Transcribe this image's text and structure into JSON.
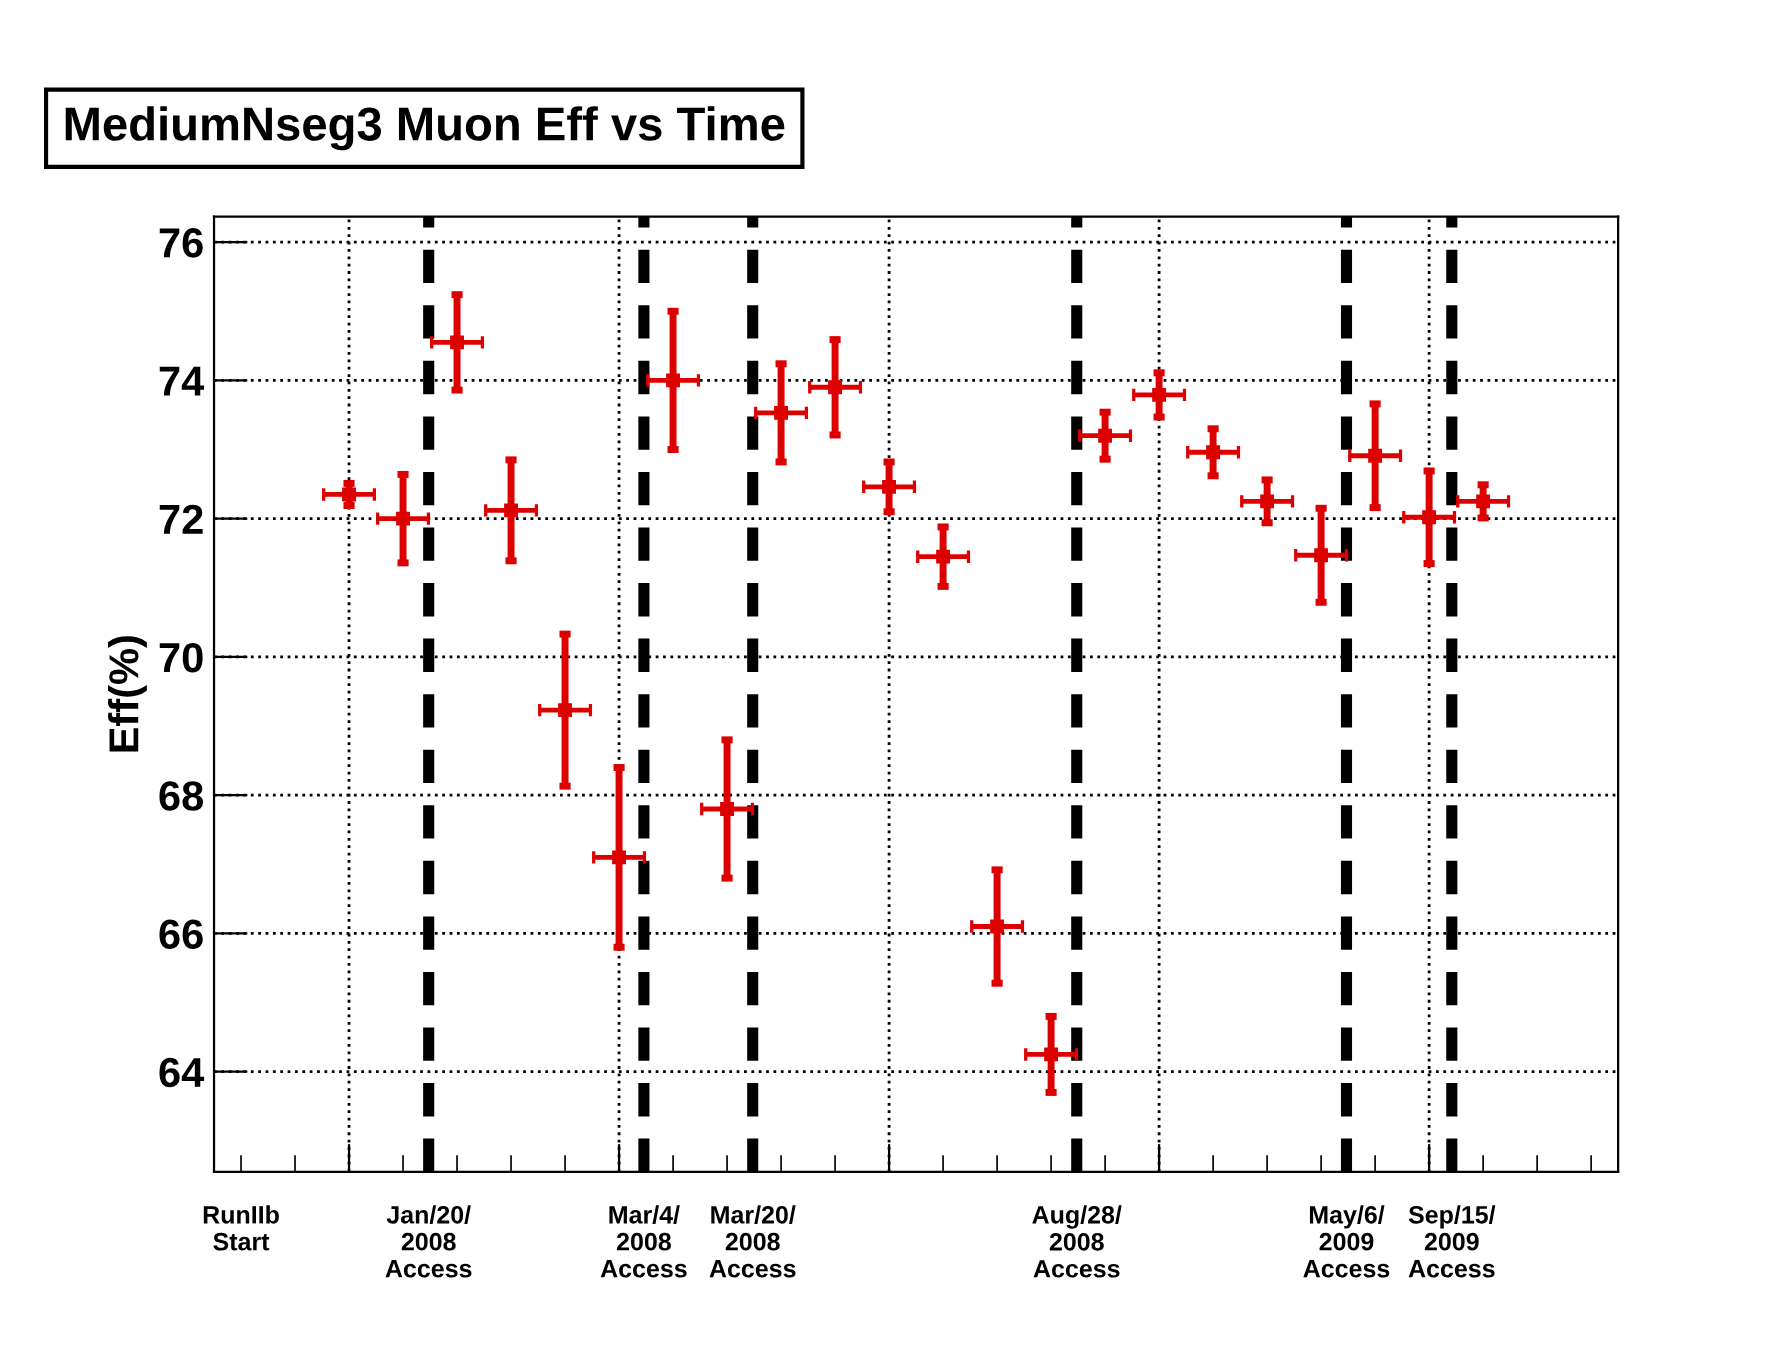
{
  "chart_data": {
    "type": "scatter",
    "title": "MediumNseg3 Muon Eff vs Time",
    "ylabel": "Eff(%)",
    "categories": [
      null,
      null,
      null,
      null,
      null,
      null,
      null,
      null,
      null,
      null,
      null,
      null,
      null,
      null,
      null,
      null,
      null,
      null,
      null,
      null,
      null,
      null,
      null,
      null,
      null,
      null
    ],
    "series": [
      {
        "color": "#dd0000",
        "values": [
          null,
          null,
          72.35,
          72.0,
          74.55,
          72.12,
          69.23,
          67.1,
          74.0,
          67.8,
          73.53,
          73.9,
          72.46,
          71.45,
          66.1,
          64.25,
          73.2,
          73.79,
          72.96,
          72.25,
          71.47,
          72.91,
          72.02,
          72.25,
          null,
          null
        ],
        "errors": [
          null,
          null,
          0.16,
          0.64,
          0.69,
          0.73,
          1.1,
          1.3,
          1.0,
          1.0,
          0.71,
          0.69,
          0.36,
          0.43,
          0.82,
          0.55,
          0.34,
          0.32,
          0.34,
          0.31,
          0.68,
          0.75,
          0.67,
          0.24,
          null,
          null
        ]
      }
    ],
    "ylim": [
      62.55,
      76.37
    ],
    "yticks": [
      64,
      66,
      68,
      70,
      72,
      74,
      76
    ],
    "annotations": [
      "RunIIb\nStart",
      "Jan/20/\n2008\nAccess",
      "Mar/4/\n2008\nAccess",
      "Mar/20/\n2008\nAccess",
      "Aug/28/\n2008\nAccess",
      "May/6/\n2009\nAccess",
      "Sep/15/\n2009\nAccess"
    ],
    "grid": true,
    "marker": "square"
  }
}
